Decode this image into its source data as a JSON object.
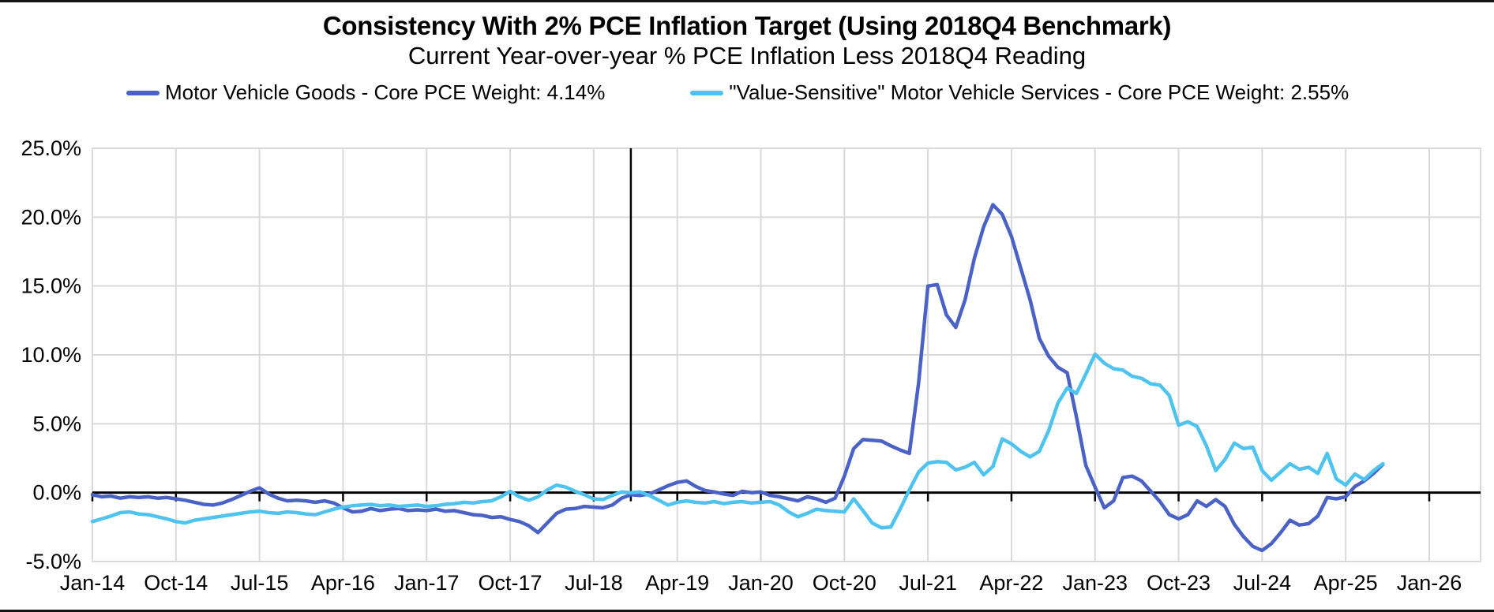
{
  "header": {
    "title": "Consistency With 2% PCE Inflation Target (Using 2018Q4 Benchmark)",
    "subtitle": "Current Year-over-year % PCE Inflation Less 2018Q4 Reading"
  },
  "legend": [
    {
      "label": "Motor Vehicle Goods - Core PCE Weight: 4.14%",
      "color": "#4A62C6"
    },
    {
      "label": "\"Value-Sensitive\" Motor Vehicle Services - Core PCE Weight: 2.55%",
      "color": "#4EC3EF"
    }
  ],
  "chart_data": {
    "type": "line",
    "title": "Consistency With 2% PCE Inflation Target (Using 2018Q4 Benchmark)",
    "subtitle": "Current Year-over-year % PCE Inflation Less 2018Q4 Reading",
    "frequency": "monthly",
    "x_start_month": "Jan-2014",
    "x_end_month": "Aug-2025",
    "x_tick_labels": [
      "Jan-14",
      "Oct-14",
      "Jul-15",
      "Apr-16",
      "Jan-17",
      "Oct-17",
      "Jul-18",
      "Apr-19",
      "Jan-20",
      "Oct-20",
      "Jul-21",
      "Apr-22",
      "Jan-23",
      "Oct-23",
      "Jul-24",
      "Apr-25",
      "Jan-26"
    ],
    "x_tick_month_indices": [
      0,
      9,
      18,
      27,
      36,
      45,
      54,
      63,
      72,
      81,
      90,
      99,
      108,
      117,
      126,
      135,
      144
    ],
    "x_axis_total_months": 144,
    "y_tick_labels": [
      "25.0%",
      "20.0%",
      "15.0%",
      "10.0%",
      "5.0%",
      "0.0%",
      "-5.0%"
    ],
    "y_tick_values": [
      25,
      20,
      15,
      10,
      5,
      0,
      -5
    ],
    "ylim": [
      -5,
      25
    ],
    "grid": true,
    "legend_position": "top",
    "benchmark_vline": {
      "month_index": 58,
      "at": "Nov-18",
      "color": "#000000"
    },
    "axis_color": "#000000",
    "gridline_color": "#D9D9D9",
    "series": [
      {
        "name": "Motor Vehicle Goods - Core PCE Weight: 4.14%",
        "color": "#4A62C6",
        "values": [
          -0.15,
          -0.3,
          -0.25,
          -0.4,
          -0.3,
          -0.35,
          -0.3,
          -0.4,
          -0.35,
          -0.45,
          -0.55,
          -0.7,
          -0.85,
          -0.9,
          -0.75,
          -0.5,
          -0.2,
          0.1,
          0.35,
          -0.1,
          -0.4,
          -0.6,
          -0.55,
          -0.6,
          -0.7,
          -0.6,
          -0.75,
          -1.1,
          -1.4,
          -1.35,
          -1.15,
          -1.3,
          -1.2,
          -1.15,
          -1.3,
          -1.25,
          -1.3,
          -1.2,
          -1.35,
          -1.3,
          -1.45,
          -1.6,
          -1.65,
          -1.8,
          -1.75,
          -1.95,
          -2.1,
          -2.4,
          -2.9,
          -2.2,
          -1.5,
          -1.2,
          -1.15,
          -1.0,
          -1.05,
          -1.1,
          -0.9,
          -0.4,
          -0.15,
          -0.2,
          -0.1,
          0.2,
          0.5,
          0.75,
          0.85,
          0.45,
          0.15,
          0.05,
          -0.1,
          -0.2,
          0.1,
          0.0,
          0.05,
          -0.2,
          -0.3,
          -0.45,
          -0.6,
          -0.3,
          -0.45,
          -0.7,
          -0.4,
          1.2,
          3.2,
          3.85,
          3.8,
          3.75,
          3.4,
          3.1,
          2.85,
          8.0,
          15.0,
          15.1,
          12.9,
          12.0,
          14.0,
          17.0,
          19.3,
          20.9,
          20.2,
          18.6,
          16.3,
          14.0,
          11.2,
          9.9,
          9.1,
          8.7,
          5.5,
          2.0,
          0.4,
          -1.1,
          -0.6,
          1.1,
          1.2,
          0.85,
          0.1,
          -0.65,
          -1.6,
          -1.9,
          -1.6,
          -0.6,
          -1.0,
          -0.5,
          -1.0,
          -2.3,
          -3.2,
          -3.9,
          -4.2,
          -3.7,
          -2.9,
          -2.0,
          -2.35,
          -2.25,
          -1.7,
          -0.35,
          -0.45,
          -0.3,
          0.45,
          0.85,
          1.4,
          2.05
        ]
      },
      {
        "name": "\"Value-Sensitive\" Motor Vehicle Services - Core PCE Weight: 2.55%",
        "color": "#4EC3EF",
        "values": [
          -2.1,
          -1.9,
          -1.7,
          -1.45,
          -1.4,
          -1.55,
          -1.6,
          -1.75,
          -1.9,
          -2.1,
          -2.2,
          -2.0,
          -1.9,
          -1.8,
          -1.7,
          -1.6,
          -1.5,
          -1.4,
          -1.35,
          -1.45,
          -1.5,
          -1.4,
          -1.45,
          -1.55,
          -1.6,
          -1.4,
          -1.2,
          -1.05,
          -0.95,
          -0.9,
          -0.85,
          -0.95,
          -0.9,
          -1.0,
          -0.95,
          -0.9,
          -1.0,
          -0.95,
          -0.85,
          -0.8,
          -0.7,
          -0.75,
          -0.65,
          -0.6,
          -0.3,
          0.1,
          -0.3,
          -0.55,
          -0.3,
          0.2,
          0.55,
          0.4,
          0.1,
          -0.15,
          -0.45,
          -0.5,
          -0.2,
          0.05,
          0.0,
          0.05,
          -0.2,
          -0.55,
          -0.9,
          -0.7,
          -0.6,
          -0.7,
          -0.75,
          -0.65,
          -0.8,
          -0.7,
          -0.65,
          -0.75,
          -0.7,
          -0.65,
          -0.9,
          -1.4,
          -1.75,
          -1.5,
          -1.2,
          -1.3,
          -1.35,
          -1.4,
          -0.45,
          -1.3,
          -2.2,
          -2.55,
          -2.5,
          -1.2,
          0.2,
          1.5,
          2.15,
          2.25,
          2.2,
          1.65,
          1.85,
          2.2,
          1.3,
          1.9,
          3.9,
          3.55,
          3.0,
          2.6,
          3.0,
          4.5,
          6.5,
          7.6,
          7.2,
          8.6,
          10.05,
          9.4,
          9.0,
          8.9,
          8.45,
          8.3,
          7.9,
          7.8,
          7.05,
          4.9,
          5.15,
          4.8,
          3.4,
          1.6,
          2.4,
          3.6,
          3.2,
          3.3,
          1.6,
          0.9,
          1.5,
          2.1,
          1.7,
          1.85,
          1.4,
          2.85,
          1.0,
          0.55,
          1.35,
          0.95,
          1.6,
          2.1
        ]
      }
    ]
  }
}
